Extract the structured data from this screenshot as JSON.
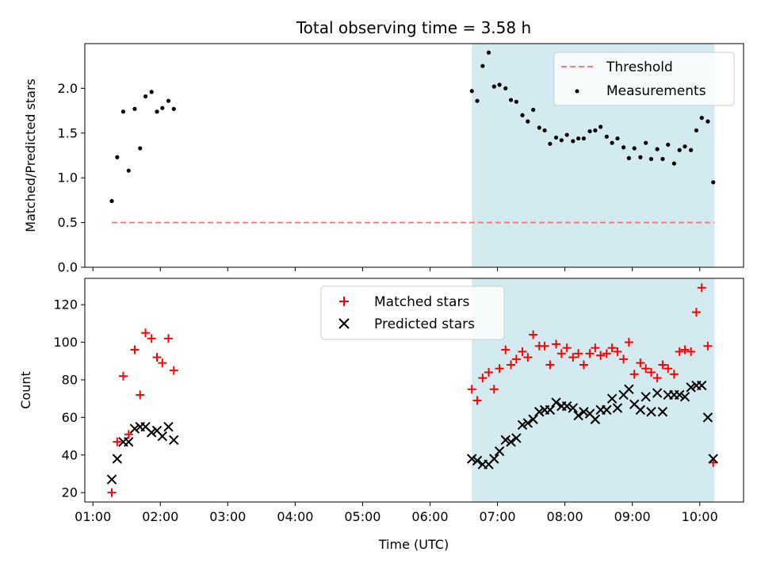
{
  "figure": {
    "title": "Total observing time = 3.58 h",
    "xlabel": "Time (UTC)",
    "x_tick_labels": [
      "01:00",
      "02:00",
      "03:00",
      "04:00",
      "05:00",
      "06:00",
      "07:00",
      "08:00",
      "09:00",
      "10:00"
    ]
  },
  "chart_data": [
    {
      "type": "scatter",
      "title": "Total observing time = 3.58 h",
      "xlabel": "",
      "ylabel": "Matched/Predicted stars",
      "x_unit": "hours UTC",
      "xlim": [
        0.88,
        10.65
      ],
      "ylim": [
        0.0,
        2.5
      ],
      "yticks": [
        0.0,
        0.5,
        1.0,
        1.5,
        2.0
      ],
      "y_tick_labels": [
        "0.0",
        "0.5",
        "1.0",
        "1.5",
        "2.0"
      ],
      "shaded_region": {
        "x": [
          6.62,
          10.22
        ],
        "color": "#d3ebf0"
      },
      "threshold": {
        "name": "Threshold",
        "value": 0.5,
        "x": [
          1.28,
          10.22
        ],
        "color": "#f08080",
        "style": "dashed"
      },
      "legend": {
        "position": "top-right",
        "entries": [
          "Threshold",
          "Measurements"
        ]
      },
      "series": [
        {
          "name": "Measurements",
          "color": "#000000",
          "marker": "dot",
          "x": [
            1.28,
            1.36,
            1.45,
            1.53,
            1.62,
            1.7,
            1.78,
            1.87,
            1.95,
            2.03,
            2.12,
            2.2,
            6.62,
            6.7,
            6.78,
            6.87,
            6.95,
            7.03,
            7.12,
            7.2,
            7.28,
            7.37,
            7.45,
            7.53,
            7.62,
            7.7,
            7.78,
            7.87,
            7.95,
            8.03,
            8.12,
            8.2,
            8.28,
            8.37,
            8.45,
            8.53,
            8.62,
            8.7,
            8.78,
            8.87,
            8.95,
            9.03,
            9.12,
            9.2,
            9.28,
            9.37,
            9.45,
            9.53,
            9.62,
            9.7,
            9.78,
            9.87,
            9.95,
            10.03,
            10.12,
            10.2
          ],
          "y": [
            0.74,
            1.23,
            1.74,
            1.08,
            1.77,
            1.33,
            1.91,
            1.96,
            1.74,
            1.78,
            1.86,
            1.77,
            1.97,
            1.86,
            2.25,
            2.4,
            2.02,
            2.04,
            2.0,
            1.87,
            1.85,
            1.7,
            1.63,
            1.76,
            1.56,
            1.53,
            1.38,
            1.45,
            1.42,
            1.48,
            1.41,
            1.44,
            1.44,
            1.52,
            1.53,
            1.57,
            1.46,
            1.39,
            1.44,
            1.34,
            1.22,
            1.33,
            1.23,
            1.39,
            1.21,
            1.32,
            1.21,
            1.37,
            1.16,
            1.31,
            1.35,
            1.31,
            1.53,
            1.67,
            1.63,
            0.95
          ]
        }
      ]
    },
    {
      "type": "scatter",
      "xlabel": "Time (UTC)",
      "ylabel": "Count",
      "x_unit": "hours UTC",
      "xlim": [
        0.88,
        10.65
      ],
      "ylim": [
        15,
        134
      ],
      "yticks": [
        20,
        40,
        60,
        80,
        100,
        120
      ],
      "y_tick_labels": [
        "20",
        "40",
        "60",
        "80",
        "100",
        "120"
      ],
      "xticks": [
        1,
        2,
        3,
        4,
        5,
        6,
        7,
        8,
        9,
        10
      ],
      "x_tick_labels": [
        "01:00",
        "02:00",
        "03:00",
        "04:00",
        "05:00",
        "06:00",
        "07:00",
        "08:00",
        "09:00",
        "10:00"
      ],
      "shaded_region": {
        "x": [
          6.62,
          10.22
        ],
        "color": "#d3ebf0"
      },
      "legend": {
        "position": "top-center",
        "entries": [
          "Matched stars",
          "Predicted stars"
        ]
      },
      "series": [
        {
          "name": "Matched stars",
          "color": "#ff0000",
          "marker": "plus",
          "x": [
            1.28,
            1.36,
            1.45,
            1.53,
            1.62,
            1.7,
            1.78,
            1.87,
            1.95,
            2.03,
            2.12,
            2.2,
            6.62,
            6.7,
            6.78,
            6.87,
            6.95,
            7.03,
            7.12,
            7.2,
            7.28,
            7.37,
            7.45,
            7.53,
            7.62,
            7.7,
            7.78,
            7.87,
            7.95,
            8.03,
            8.12,
            8.2,
            8.28,
            8.37,
            8.45,
            8.53,
            8.62,
            8.7,
            8.78,
            8.87,
            8.95,
            9.03,
            9.12,
            9.2,
            9.28,
            9.37,
            9.45,
            9.53,
            9.62,
            9.7,
            9.78,
            9.87,
            9.95,
            10.03,
            10.12,
            10.2
          ],
          "y": [
            20,
            47,
            82,
            51,
            96,
            72,
            105,
            102,
            92,
            89,
            102,
            85,
            75,
            69,
            81,
            84,
            75,
            86,
            96,
            88,
            91,
            95,
            92,
            104,
            98,
            98,
            88,
            99,
            94,
            97,
            92,
            94,
            88,
            94,
            97,
            93,
            94,
            97,
            95,
            91,
            100,
            83,
            89,
            86,
            84,
            81,
            88,
            86,
            83,
            95,
            96,
            95,
            116,
            129,
            98,
            36
          ]
        },
        {
          "name": "Predicted stars",
          "color": "#000000",
          "marker": "x",
          "x": [
            1.28,
            1.36,
            1.45,
            1.53,
            1.62,
            1.7,
            1.78,
            1.87,
            1.95,
            2.03,
            2.12,
            2.2,
            6.62,
            6.7,
            6.78,
            6.87,
            6.95,
            7.03,
            7.12,
            7.2,
            7.28,
            7.37,
            7.45,
            7.53,
            7.62,
            7.7,
            7.78,
            7.87,
            7.95,
            8.03,
            8.12,
            8.2,
            8.28,
            8.37,
            8.45,
            8.53,
            8.62,
            8.7,
            8.78,
            8.87,
            8.95,
            9.03,
            9.12,
            9.2,
            9.28,
            9.37,
            9.45,
            9.53,
            9.62,
            9.7,
            9.78,
            9.87,
            9.95,
            10.03,
            10.12,
            10.2
          ],
          "y": [
            27,
            38,
            47,
            47,
            54,
            55,
            55,
            52,
            53,
            50,
            55,
            48,
            38,
            37,
            35,
            35,
            38,
            42,
            48,
            47,
            49,
            56,
            57,
            59,
            63,
            64,
            64,
            68,
            66,
            66,
            65,
            61,
            63,
            62,
            59,
            64,
            64,
            70,
            65,
            72,
            75,
            67,
            64,
            71,
            63,
            73,
            63,
            72,
            72,
            72,
            71,
            76,
            77,
            77,
            60,
            38
          ]
        }
      ]
    }
  ]
}
